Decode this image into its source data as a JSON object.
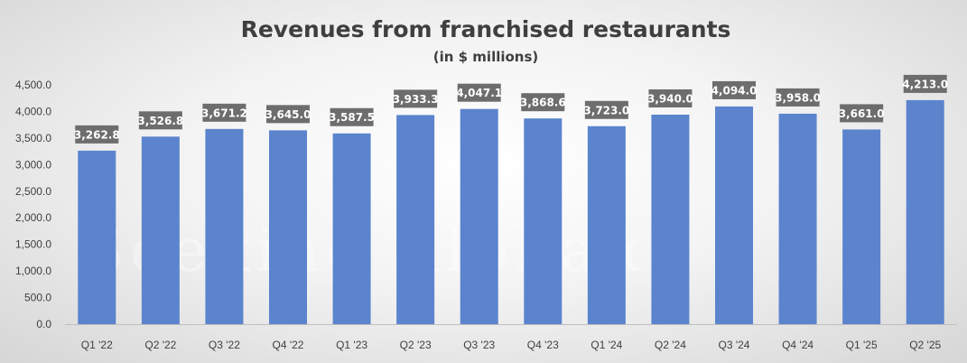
{
  "chart_data": {
    "type": "bar",
    "title": "Revenues from franchised restaurants",
    "subtitle": "(in $ millions)",
    "xlabel": "",
    "ylabel": "",
    "categories": [
      "Q1 '22",
      "Q2 '22",
      "Q3 '22",
      "Q4 '22",
      "Q1 '23",
      "Q2 '23",
      "Q3 '23",
      "Q4 '23",
      "Q1 '24",
      "Q2 '24",
      "Q3 '24",
      "Q4 '24",
      "Q1 '25",
      "Q2 '25"
    ],
    "values": [
      3262.8,
      3526.8,
      3671.2,
      3645.0,
      3587.5,
      3933.3,
      4047.1,
      3868.6,
      3723.0,
      3940.0,
      4094.0,
      3958.0,
      3661.0,
      4213.0
    ],
    "value_labels": [
      "3,262.8",
      "3,526.8",
      "3,671.2",
      "3,645.0",
      "3,587.5",
      "3,933.3",
      "4,047.1",
      "3,868.6",
      "3,723.0",
      "3,940.0",
      "4,094.0",
      "3,958.0",
      "3,661.0",
      "4,213.0"
    ],
    "y_ticks": [
      "0.0",
      "500.0",
      "1,000.0",
      "1,500.0",
      "2,000.0",
      "2,500.0",
      "3,000.0",
      "3,500.0",
      "4,000.0",
      "4,500.0"
    ],
    "ylim": [
      0,
      4500
    ],
    "grid": false,
    "legend": "none",
    "bar_color": "#5b84cd",
    "label_box_color": "#6d6d6d",
    "watermark": "Seeking Alphaα"
  }
}
